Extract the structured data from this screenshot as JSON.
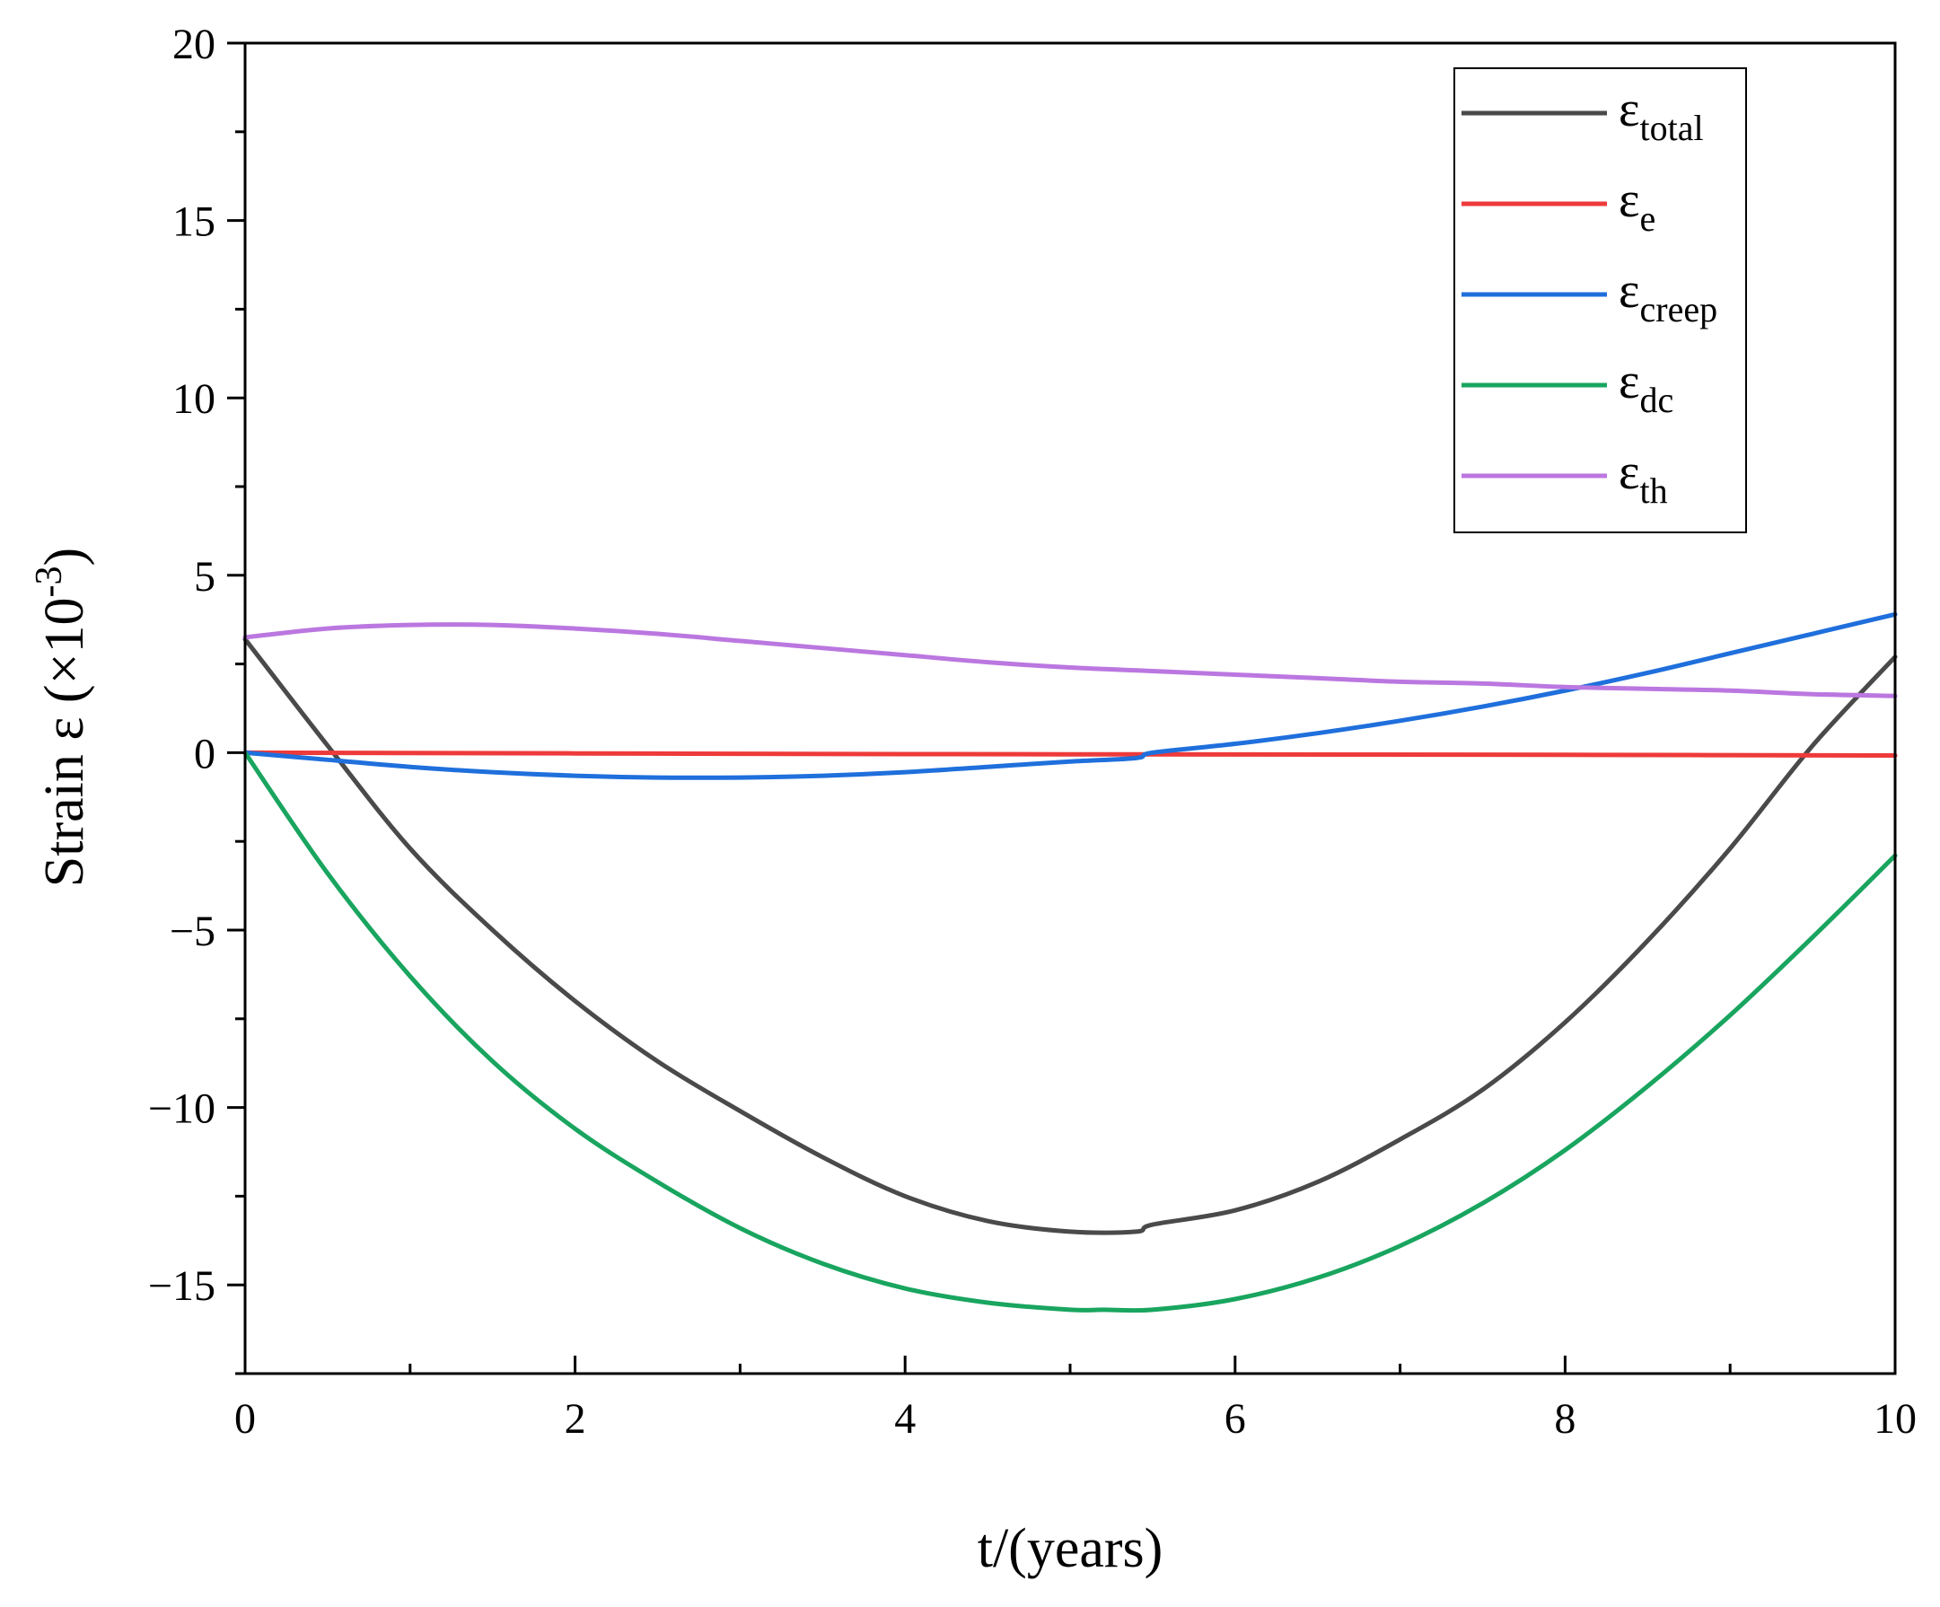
{
  "chart_data": {
    "type": "line",
    "title": "",
    "xlabel": "t/(years)",
    "ylabel": {
      "prefix": "Strain ε (×10",
      "exponent": "-3",
      "suffix": ")"
    },
    "xlim": [
      0,
      10
    ],
    "ylim": [
      -17.5,
      20
    ],
    "x_ticks": [
      0,
      2,
      4,
      6,
      8,
      10
    ],
    "x_tick_labels": [
      "0",
      "2",
      "4",
      "6",
      "8",
      "10"
    ],
    "y_ticks": [
      -15,
      -10,
      -5,
      0,
      5,
      10,
      15,
      20
    ],
    "y_tick_labels": [
      "−15",
      "−10",
      "−5",
      "0",
      "5",
      "10",
      "15",
      "20"
    ],
    "grid": false,
    "legend_position": "top-right",
    "series": [
      {
        "name": "ε_total",
        "label_base": "ε",
        "label_sub": "total",
        "color": "#4a4a4a",
        "x": [
          0,
          0.5,
          1,
          1.5,
          2,
          2.5,
          3,
          3.5,
          4,
          4.5,
          5,
          5.4,
          5.5,
          6,
          6.5,
          7,
          7.5,
          8,
          8.5,
          9,
          9.5,
          10
        ],
        "y": [
          3.2,
          0.2,
          -2.7,
          -5.0,
          -7.0,
          -8.7,
          -10.1,
          -11.4,
          -12.5,
          -13.2,
          -13.5,
          -13.5,
          -13.3,
          -12.9,
          -12.1,
          -10.9,
          -9.5,
          -7.6,
          -5.3,
          -2.7,
          0.2,
          2.7
        ]
      },
      {
        "name": "ε_e",
        "label_base": "ε",
        "label_sub": "e",
        "color": "#ee3a3a",
        "x": [
          0,
          2,
          4,
          6,
          8,
          10
        ],
        "y": [
          0.0,
          -0.02,
          -0.04,
          -0.05,
          -0.06,
          -0.08
        ]
      },
      {
        "name": "ε_creep",
        "label_base": "ε",
        "label_sub": "creep",
        "color": "#1f6fdc",
        "x": [
          0,
          0.5,
          1,
          1.5,
          2,
          2.5,
          3,
          3.5,
          4,
          4.5,
          5,
          5.4,
          5.5,
          6,
          6.5,
          7,
          7.5,
          8,
          8.5,
          9,
          9.5,
          10
        ],
        "y": [
          0.0,
          -0.2,
          -0.4,
          -0.55,
          -0.65,
          -0.7,
          -0.7,
          -0.65,
          -0.55,
          -0.4,
          -0.25,
          -0.15,
          0.0,
          0.25,
          0.55,
          0.9,
          1.3,
          1.75,
          2.25,
          2.8,
          3.35,
          3.9
        ]
      },
      {
        "name": "ε_dc",
        "label_base": "ε",
        "label_sub": "dc",
        "color": "#19a55f",
        "x": [
          0,
          0.5,
          1,
          1.5,
          2,
          2.5,
          3,
          3.5,
          4,
          4.5,
          5,
          5.2,
          5.5,
          6,
          6.5,
          7,
          7.5,
          8,
          8.5,
          9,
          9.5,
          10
        ],
        "y": [
          0.0,
          -3.4,
          -6.3,
          -8.7,
          -10.6,
          -12.1,
          -13.4,
          -14.4,
          -15.1,
          -15.5,
          -15.7,
          -15.7,
          -15.7,
          -15.4,
          -14.8,
          -13.9,
          -12.7,
          -11.2,
          -9.4,
          -7.4,
          -5.2,
          -2.9
        ]
      },
      {
        "name": "ε_th",
        "label_base": "ε",
        "label_sub": "th",
        "color": "#bb77e0",
        "x": [
          0,
          0.5,
          1,
          1.5,
          2,
          2.5,
          3,
          3.5,
          4,
          4.5,
          5,
          5.5,
          6,
          6.5,
          7,
          7.5,
          8,
          8.5,
          9,
          9.5,
          10
        ],
        "y": [
          3.25,
          3.5,
          3.6,
          3.6,
          3.5,
          3.35,
          3.15,
          2.95,
          2.75,
          2.55,
          2.4,
          2.3,
          2.2,
          2.1,
          2.0,
          1.95,
          1.85,
          1.8,
          1.75,
          1.65,
          1.6
        ]
      }
    ]
  }
}
